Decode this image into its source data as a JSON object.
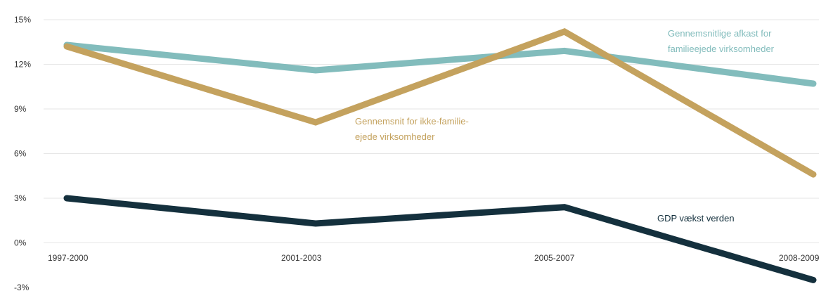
{
  "chart_data": {
    "type": "line",
    "categories": [
      "1997-2000",
      "2001-2003",
      "2005-2007",
      "2008-2009"
    ],
    "ylim": [
      -3,
      15
    ],
    "yticks": [
      "15%",
      "12%",
      "9%",
      "6%",
      "3%",
      "0%",
      "-3%"
    ],
    "ytick_values": [
      15,
      12,
      9,
      6,
      3,
      0,
      -3
    ],
    "grid": true,
    "series": [
      {
        "name": "Gennemsnitlige afkast for familieejede virksomheder",
        "label_lines": [
          "Gennemsnitlige afkast for",
          "familieejede virksomheder"
        ],
        "values": [
          13.3,
          11.6,
          12.9,
          10.7
        ],
        "color": "#82bcbc"
      },
      {
        "name": "Gennemsnit for ikke-familie-ejede virksomheder",
        "label_lines": [
          "Gennemsnit for ikke-familie-",
          "ejede virksomheder"
        ],
        "values": [
          13.2,
          8.1,
          14.2,
          4.6
        ],
        "color": "#c4a25e"
      },
      {
        "name": "GDP vækst verden",
        "label_lines": [
          "GDP vækst verden"
        ],
        "values": [
          3.0,
          1.3,
          2.4,
          -2.5
        ],
        "color": "#14303d"
      }
    ]
  }
}
